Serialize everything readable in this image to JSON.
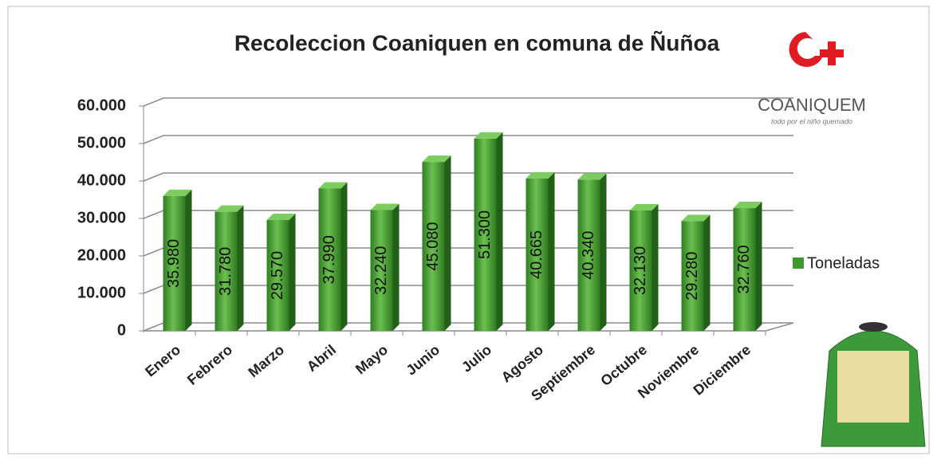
{
  "chart_data": {
    "type": "bar3d",
    "title": "Recoleccion Coaniquen en comuna de Ñuñoa",
    "categories": [
      "Enero",
      "Febrero",
      "Marzo",
      "Abril",
      "Mayo",
      "Junio",
      "Julio",
      "Agosto",
      "Septiembre",
      "Octubre",
      "Noviembre",
      "Diciembre"
    ],
    "series": [
      {
        "name": "Toneladas",
        "color": "#3f9a2e",
        "values": [
          35980,
          31780,
          29570,
          37990,
          32240,
          45080,
          51300,
          40665,
          40340,
          32130,
          29280,
          32760
        ],
        "value_labels": [
          "35.980",
          "31.780",
          "29.570",
          "37.990",
          "32.240",
          "45.080",
          "51.300",
          "40.665",
          "40.340",
          "32.130",
          "29.280",
          "32.760"
        ]
      }
    ],
    "ylim": [
      0,
      60000
    ],
    "yticks": [
      0,
      {
        "value": 10000,
        "label": "10.000"
      },
      {
        "value": 20000,
        "label": "20.000"
      },
      {
        "value": 30000,
        "label": "30.000"
      },
      {
        "value": 40000,
        "label": "40.000"
      },
      {
        "value": 50000,
        "label": "50.000"
      },
      {
        "value": 60000,
        "label": "60.000"
      }
    ],
    "grid": true,
    "legend": "right"
  },
  "logo": {
    "name": "COANIQUEM",
    "tagline": "todo por el niño quemado"
  }
}
